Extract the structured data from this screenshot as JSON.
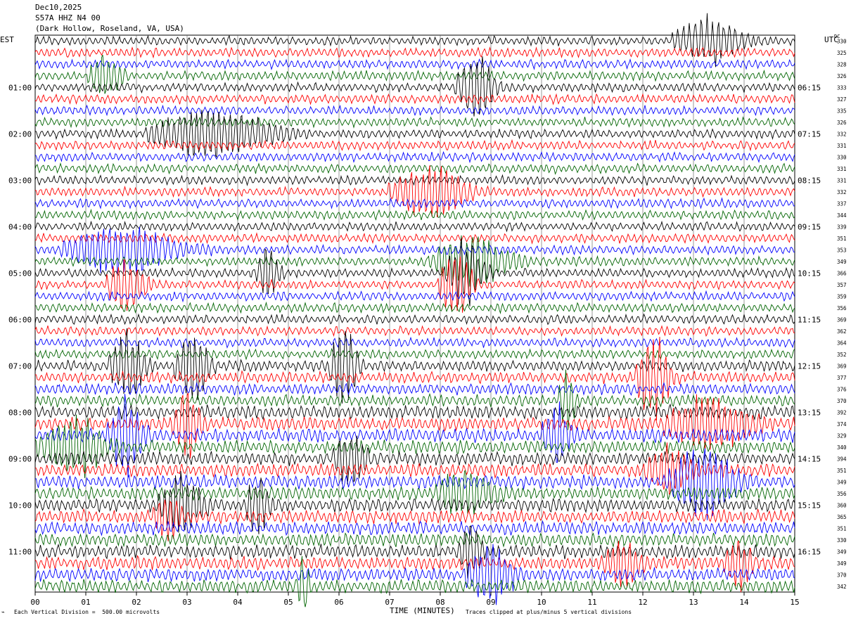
{
  "header": {
    "date": "Dec10,2025",
    "station": "S57A HHZ N4 00",
    "location": "(Dark Hollow, Roseland, VA, USA)"
  },
  "labels": {
    "left_tz": "EST",
    "right_tz": "UTC",
    "dc": "DC"
  },
  "footer": {
    "division": "Each Vertical Division =  500.00 microvolts",
    "xlabel": "TIME (MINUTES)",
    "clip_note": "Traces clipped at plus/minus 5 vertical divisions"
  },
  "chart_data": {
    "type": "line",
    "title": "",
    "xlabel": "TIME (MINUTES)",
    "xlim": [
      0,
      15
    ],
    "x_ticks": [
      "00",
      "01",
      "02",
      "03",
      "04",
      "05",
      "06",
      "07",
      "08",
      "09",
      "10",
      "11",
      "12",
      "13",
      "14",
      "15"
    ],
    "trace_colors": [
      "#000000",
      "#ff0000",
      "#0000ff",
      "#006400"
    ],
    "left_hour_labels": [
      {
        "row": 4,
        "text": "01:00"
      },
      {
        "row": 8,
        "text": "02:00"
      },
      {
        "row": 12,
        "text": "03:00"
      },
      {
        "row": 16,
        "text": "04:00"
      },
      {
        "row": 20,
        "text": "05:00"
      },
      {
        "row": 24,
        "text": "06:00"
      },
      {
        "row": 28,
        "text": "07:00"
      },
      {
        "row": 32,
        "text": "08:00"
      },
      {
        "row": 36,
        "text": "09:00"
      },
      {
        "row": 40,
        "text": "10:00"
      },
      {
        "row": 44,
        "text": "11:00"
      }
    ],
    "right_hour_labels": [
      {
        "row": 4,
        "text": "06:15"
      },
      {
        "row": 8,
        "text": "07:15"
      },
      {
        "row": 12,
        "text": "08:15"
      },
      {
        "row": 16,
        "text": "09:15"
      },
      {
        "row": 20,
        "text": "10:15"
      },
      {
        "row": 24,
        "text": "11:15"
      },
      {
        "row": 28,
        "text": "12:15"
      },
      {
        "row": 32,
        "text": "13:15"
      },
      {
        "row": 36,
        "text": "14:15"
      },
      {
        "row": 40,
        "text": "15:15"
      },
      {
        "row": 44,
        "text": "16:15"
      }
    ],
    "dc_offsets": [
      "330",
      "325",
      "328",
      "326",
      "333",
      "327",
      "335",
      "326",
      "332",
      "331",
      "330",
      "331",
      "331",
      "332",
      "337",
      "344",
      "339",
      "351",
      "353",
      "349",
      "366",
      "357",
      "359",
      "356",
      "369",
      "362",
      "364",
      "352",
      "369",
      "377",
      "376",
      "370",
      "392",
      "374",
      "329",
      "340",
      "394",
      "351",
      "349",
      "356",
      "360",
      "365",
      "351",
      "330",
      "349",
      "349",
      "370",
      "342"
    ],
    "bursts": [
      {
        "row": 0,
        "x": 13.3,
        "w": 1.2,
        "a": 1.6
      },
      {
        "row": 3,
        "x": 1.4,
        "w": 0.6,
        "a": 1.5
      },
      {
        "row": 4,
        "x": 8.7,
        "w": 0.7,
        "a": 2.2
      },
      {
        "row": 8,
        "x": 3.5,
        "w": 2.2,
        "a": 1.6
      },
      {
        "row": 13,
        "x": 7.8,
        "w": 1.4,
        "a": 1.8
      },
      {
        "row": 18,
        "x": 1.7,
        "w": 2.0,
        "a": 1.6
      },
      {
        "row": 19,
        "x": 8.6,
        "w": 1.4,
        "a": 1.8
      },
      {
        "row": 20,
        "x": 4.6,
        "w": 0.4,
        "a": 2.0
      },
      {
        "row": 20,
        "x": 8.5,
        "w": 0.7,
        "a": 2.2
      },
      {
        "row": 21,
        "x": 1.8,
        "w": 0.7,
        "a": 1.8
      },
      {
        "row": 21,
        "x": 8.3,
        "w": 0.6,
        "a": 2.8
      },
      {
        "row": 28,
        "x": 1.8,
        "w": 0.6,
        "a": 2.6
      },
      {
        "row": 28,
        "x": 3.1,
        "w": 0.6,
        "a": 2.4
      },
      {
        "row": 28,
        "x": 6.1,
        "w": 0.5,
        "a": 2.6
      },
      {
        "row": 29,
        "x": 12.2,
        "w": 0.6,
        "a": 3.0
      },
      {
        "row": 31,
        "x": 10.5,
        "w": 0.3,
        "a": 2.0
      },
      {
        "row": 33,
        "x": 3.0,
        "w": 0.5,
        "a": 2.4
      },
      {
        "row": 33,
        "x": 13.3,
        "w": 1.5,
        "a": 1.8
      },
      {
        "row": 34,
        "x": 1.8,
        "w": 0.7,
        "a": 2.6
      },
      {
        "row": 34,
        "x": 10.3,
        "w": 0.5,
        "a": 2.0
      },
      {
        "row": 35,
        "x": 0.7,
        "w": 1.2,
        "a": 2.0
      },
      {
        "row": 36,
        "x": 6.2,
        "w": 0.6,
        "a": 1.8
      },
      {
        "row": 37,
        "x": 12.5,
        "w": 0.8,
        "a": 1.6
      },
      {
        "row": 38,
        "x": 13.2,
        "w": 1.2,
        "a": 2.4
      },
      {
        "row": 39,
        "x": 8.5,
        "w": 1.0,
        "a": 1.6
      },
      {
        "row": 40,
        "x": 2.9,
        "w": 0.8,
        "a": 2.0
      },
      {
        "row": 40,
        "x": 4.4,
        "w": 0.4,
        "a": 2.0
      },
      {
        "row": 41,
        "x": 2.6,
        "w": 0.5,
        "a": 1.6
      },
      {
        "row": 44,
        "x": 8.6,
        "w": 0.4,
        "a": 2.0
      },
      {
        "row": 45,
        "x": 11.6,
        "w": 0.7,
        "a": 1.6
      },
      {
        "row": 45,
        "x": 13.9,
        "w": 0.5,
        "a": 1.6
      },
      {
        "row": 46,
        "x": 9.0,
        "w": 0.9,
        "a": 1.8
      },
      {
        "row": 47,
        "x": 5.3,
        "w": 0.2,
        "a": 2.2
      }
    ]
  }
}
